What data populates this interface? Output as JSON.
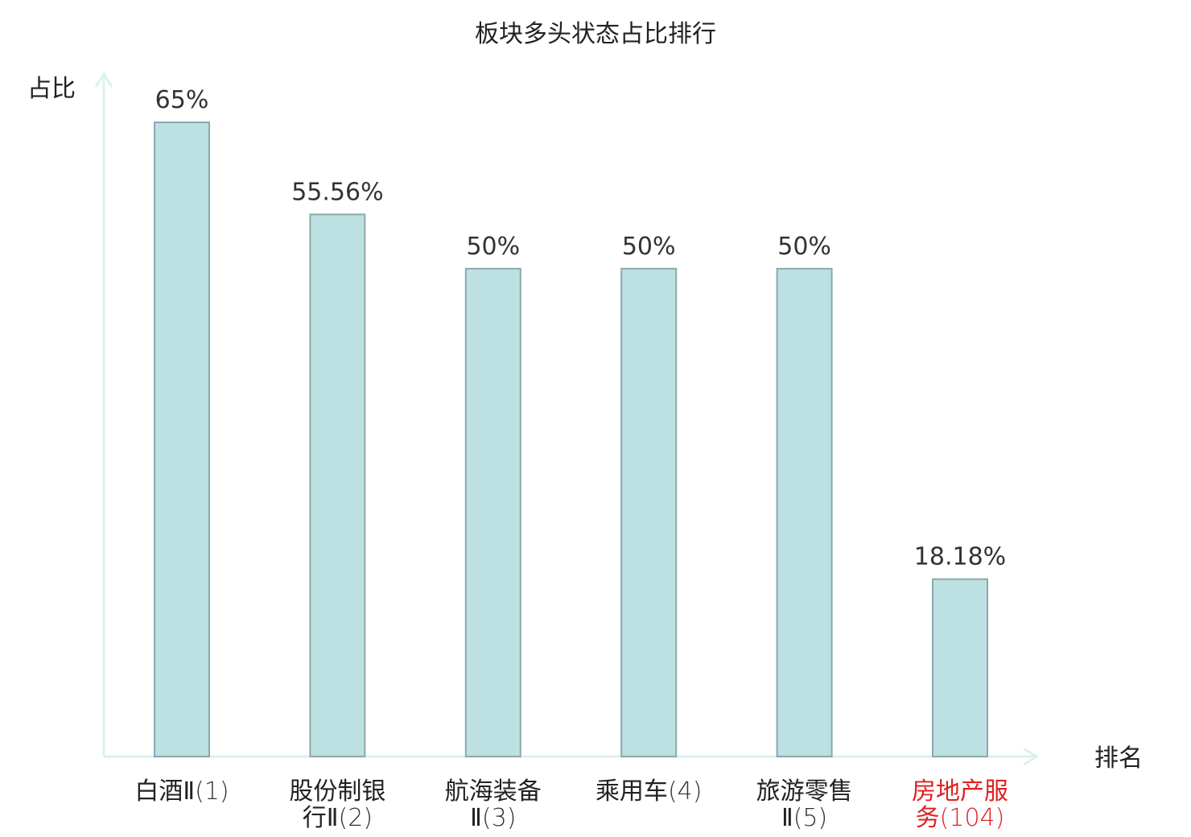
{
  "chart_data": {
    "type": "bar",
    "title": "板块多头状态占比排行",
    "xlabel": "排名",
    "ylabel": "占比",
    "ylim": [
      0,
      72
    ],
    "grid": false,
    "categories": [
      {
        "lines": [
          {
            "name": "白酒Ⅱ",
            "rank": "(1)"
          }
        ]
      },
      {
        "lines": [
          {
            "name": "股份制银",
            "rank": ""
          },
          {
            "name": "行Ⅱ",
            "rank": "(2)"
          }
        ]
      },
      {
        "lines": [
          {
            "name": "航海装备",
            "rank": ""
          },
          {
            "name": "Ⅱ",
            "rank": "(3)"
          }
        ]
      },
      {
        "lines": [
          {
            "name": "乘用车",
            "rank": "(4)"
          }
        ]
      },
      {
        "lines": [
          {
            "name": "旅游零售",
            "rank": ""
          },
          {
            "name": "Ⅱ",
            "rank": "(5)"
          }
        ]
      },
      {
        "lines": [
          {
            "name": "房地产服",
            "rank": ""
          },
          {
            "name": "务",
            "rank": "(104)"
          }
        ],
        "highlight": true
      }
    ],
    "values": [
      65,
      55.56,
      50,
      50,
      50,
      18.18
    ],
    "value_labels": [
      "65%",
      "55.56%",
      "50%",
      "50%",
      "50%",
      "18.18%"
    ],
    "colors": {
      "bar_fill": "#bde0e3",
      "bar_stroke": "#8aa9ad",
      "axis": "#dcf1ee",
      "highlight": "#e02020"
    }
  }
}
